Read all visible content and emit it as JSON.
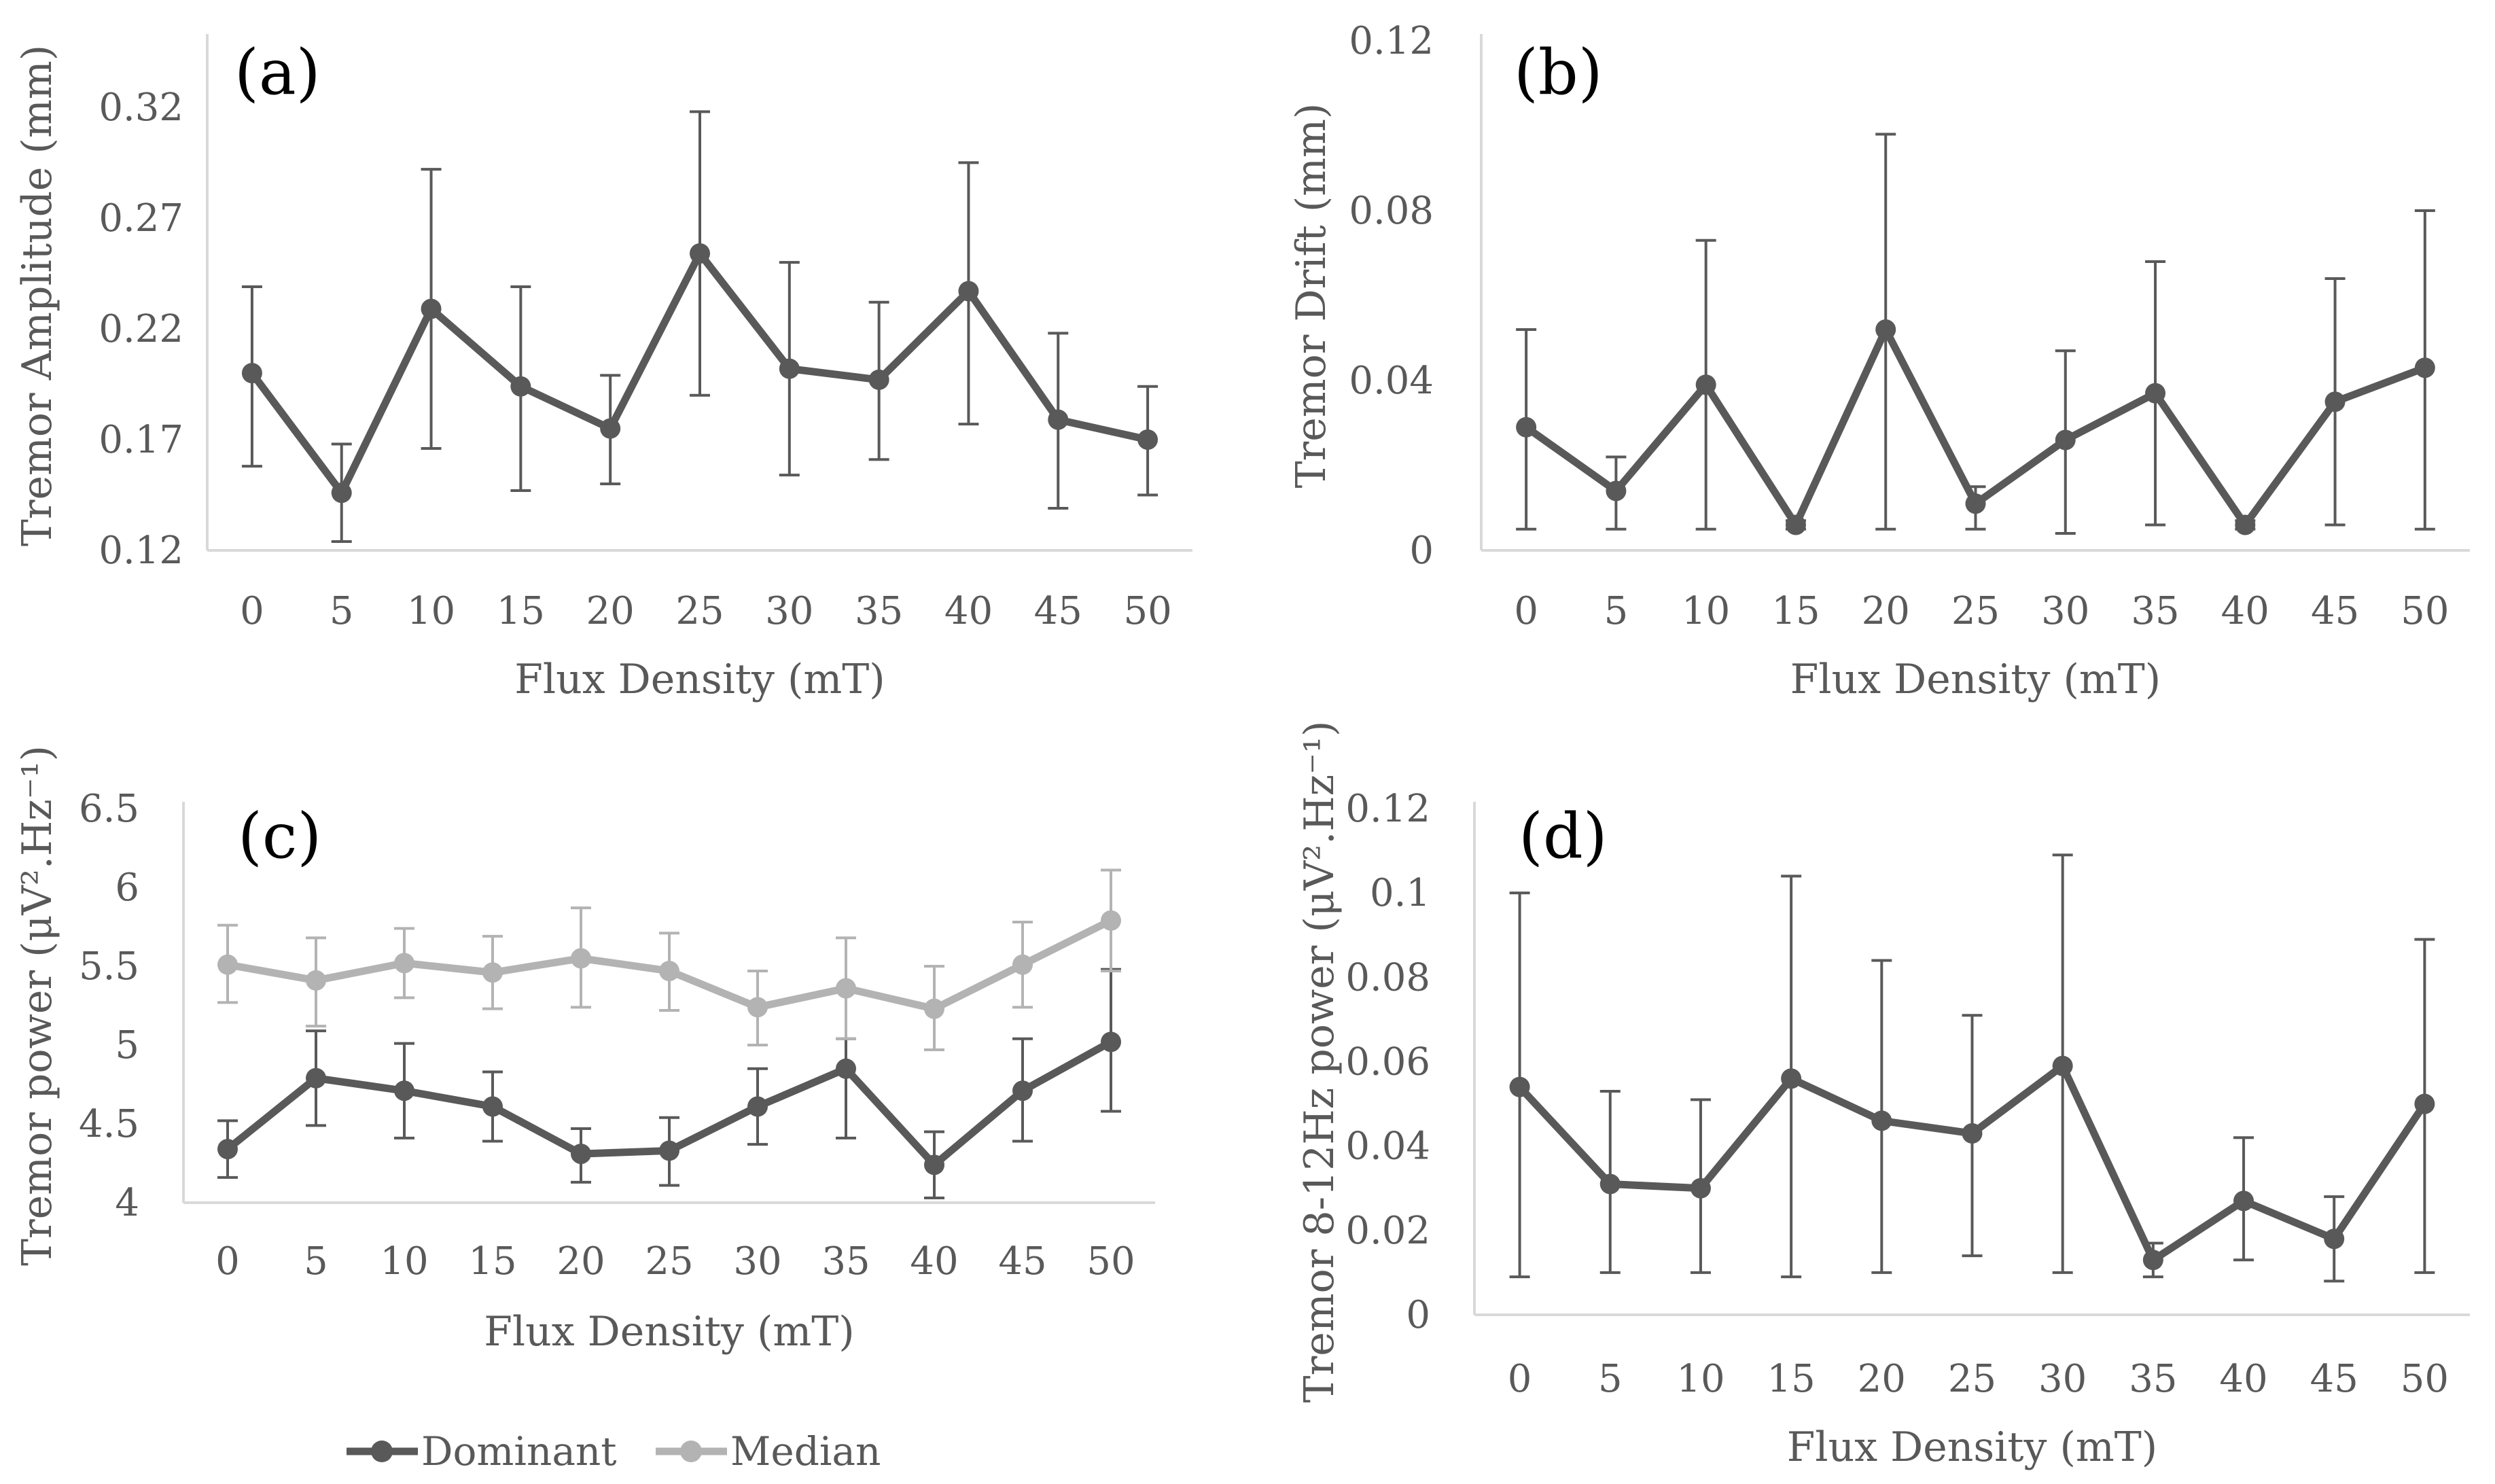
{
  "chart_data": [
    {
      "type": "line",
      "panel_label": "(a)",
      "xlabel": "Flux Density (mT)",
      "ylabel": "Tremor Amplitude (mm)",
      "ylim": [
        0.12,
        0.35
      ],
      "yticks": [
        0.12,
        0.17,
        0.22,
        0.27,
        0.32
      ],
      "categories": [
        "0",
        "5",
        "10",
        "15",
        "20",
        "25",
        "30",
        "35",
        "40",
        "45",
        "50"
      ],
      "series": [
        {
          "name": "Dominant",
          "color": "#595959",
          "values": [
            0.2,
            0.146,
            0.229,
            0.194,
            0.175,
            0.254,
            0.202,
            0.197,
            0.237,
            0.179,
            0.17
          ],
          "err_low": [
            0.158,
            0.124,
            0.166,
            0.147,
            0.15,
            0.19,
            0.154,
            0.161,
            0.177,
            0.139,
            0.145
          ],
          "err_high": [
            0.239,
            0.168,
            0.292,
            0.239,
            0.199,
            0.318,
            0.25,
            0.232,
            0.295,
            0.218,
            0.194
          ]
        }
      ]
    },
    {
      "type": "line",
      "panel_label": "(b)",
      "xlabel": "Flux Density (mT)",
      "ylabel": "Tremor Drift (mm)",
      "ylim": [
        0,
        0.12
      ],
      "yticks": [
        0,
        0.04,
        0.08,
        0.12
      ],
      "categories": [
        "0",
        "5",
        "10",
        "15",
        "20",
        "25",
        "30",
        "35",
        "40",
        "45",
        "50"
      ],
      "series": [
        {
          "name": "Dominant",
          "color": "#595959",
          "values": [
            0.029,
            0.014,
            0.039,
            0.006,
            0.052,
            0.011,
            0.026,
            0.037,
            0.006,
            0.035,
            0.043
          ],
          "err_low": [
            0.005,
            0.005,
            0.005,
            0.005,
            0.005,
            0.005,
            0.004,
            0.006,
            0.005,
            0.006,
            0.005
          ],
          "err_high": [
            0.052,
            0.022,
            0.073,
            0.007,
            0.098,
            0.015,
            0.047,
            0.068,
            0.007,
            0.064,
            0.08
          ]
        }
      ]
    },
    {
      "type": "line",
      "panel_label": "(c)",
      "xlabel": "Flux Density (mT)",
      "ylabel": "Tremor power (μV².Hz⁻¹)",
      "ylim": [
        4,
        6.5
      ],
      "yticks": [
        4,
        4.5,
        5,
        5.5,
        6,
        6.5
      ],
      "categories": [
        "0",
        "5",
        "10",
        "15",
        "20",
        "25",
        "30",
        "35",
        "40",
        "45",
        "50"
      ],
      "series": [
        {
          "name": "Dominant",
          "color": "#595959",
          "values": [
            4.34,
            4.79,
            4.71,
            4.61,
            4.31,
            4.33,
            4.61,
            4.85,
            4.24,
            4.71,
            5.02
          ],
          "err_low": [
            4.16,
            4.49,
            4.41,
            4.39,
            4.13,
            4.11,
            4.37,
            4.41,
            4.03,
            4.39,
            4.58
          ],
          "err_high": [
            4.52,
            5.09,
            5.01,
            4.83,
            4.47,
            4.54,
            4.85,
            5.04,
            4.45,
            5.04,
            5.48
          ]
        },
        {
          "name": "Median",
          "color": "#b3b3b3",
          "values": [
            5.51,
            5.41,
            5.52,
            5.46,
            5.55,
            5.47,
            5.24,
            5.36,
            5.23,
            5.51,
            5.79
          ],
          "err_low": [
            5.27,
            5.12,
            5.3,
            5.23,
            5.24,
            5.22,
            5.0,
            5.04,
            4.97,
            5.24,
            5.47
          ],
          "err_high": [
            5.76,
            5.68,
            5.74,
            5.69,
            5.87,
            5.71,
            5.47,
            5.68,
            5.5,
            5.78,
            6.11
          ]
        }
      ]
    },
    {
      "type": "line",
      "panel_label": "(d)",
      "xlabel": "Flux Density (mT)",
      "ylabel": "Tremor 8-12Hz power (μV².Hz⁻¹)",
      "ylim": [
        0,
        0.12
      ],
      "yticks": [
        0,
        0.02,
        0.04,
        0.06,
        0.08,
        0.1,
        0.12
      ],
      "categories": [
        "0",
        "5",
        "10",
        "15",
        "20",
        "25",
        "30",
        "35",
        "40",
        "45",
        "50"
      ],
      "series": [
        {
          "name": "Dominant",
          "color": "#595959",
          "values": [
            0.054,
            0.031,
            0.03,
            0.056,
            0.046,
            0.043,
            0.059,
            0.013,
            0.027,
            0.018,
            0.05
          ],
          "err_low": [
            0.009,
            0.01,
            0.01,
            0.009,
            0.01,
            0.014,
            0.01,
            0.009,
            0.013,
            0.008,
            0.01
          ],
          "err_high": [
            0.1,
            0.053,
            0.051,
            0.104,
            0.084,
            0.071,
            0.109,
            0.017,
            0.042,
            0.028,
            0.089
          ]
        }
      ]
    }
  ],
  "legend": {
    "items": [
      {
        "name": "Dominant",
        "color": "#595959"
      },
      {
        "name": "Median",
        "color": "#b3b3b3"
      }
    ]
  }
}
